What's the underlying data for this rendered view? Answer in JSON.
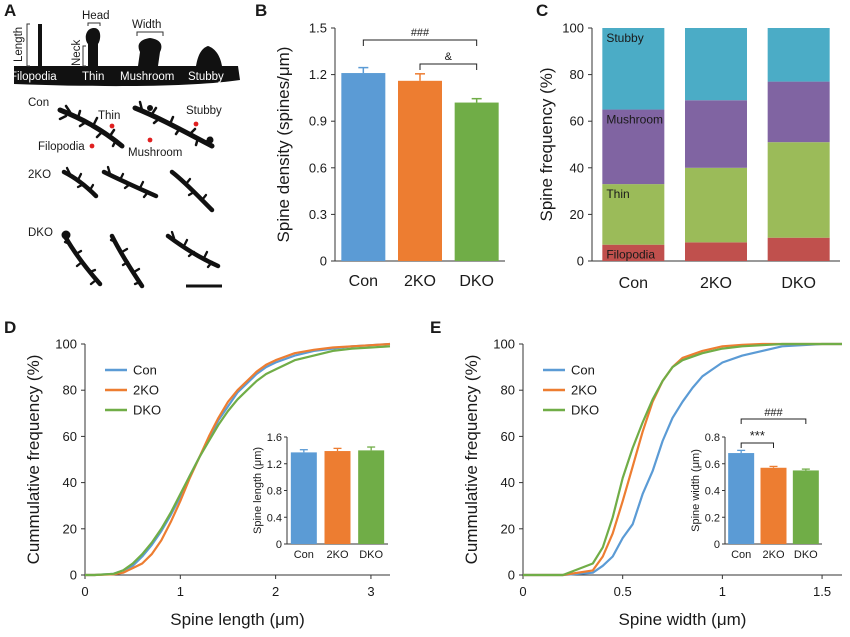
{
  "panels": {
    "a": "A",
    "b": "B",
    "c": "C",
    "d": "D",
    "e": "E"
  },
  "colors": {
    "con": "#5b9bd5",
    "ko2": "#ed7d31",
    "dko": "#70ad47",
    "filopodia": "#c0504d",
    "thin": "#9bbb59",
    "mushroom": "#8064a2",
    "stubby": "#4bacc6"
  },
  "diagram": {
    "length_label": "Length",
    "neck_label": "Neck",
    "head_label": "Head",
    "width_label": "Width",
    "types": [
      "Filopodia",
      "Thin",
      "Mushroom",
      "Stubby"
    ],
    "rows": [
      "Con",
      "2KO",
      "DKO"
    ],
    "callouts": {
      "thin": "Thin",
      "stubby": "Stubby",
      "filopodia": "Filopodia",
      "mushroom": "Mushroom"
    }
  },
  "chart_data": [
    {
      "id": "B",
      "type": "bar",
      "categories": [
        "Con",
        "2KO",
        "DKO"
      ],
      "values": [
        1.21,
        1.16,
        1.02
      ],
      "errors": [
        0.035,
        0.045,
        0.025
      ],
      "ylabel": "Spine density (spines/μm)",
      "ylim": [
        0,
        1.5
      ],
      "yticks": [
        "0",
        "0.3",
        "0.6",
        "0.9",
        "1.2",
        "1.5"
      ],
      "annotations": [
        {
          "from": "Con",
          "to": "DKO",
          "label": "###"
        },
        {
          "from": "2KO",
          "to": "DKO",
          "label": "&"
        }
      ]
    },
    {
      "id": "C",
      "type": "stacked-bar",
      "categories": [
        "Con",
        "2KO",
        "DKO"
      ],
      "series": [
        {
          "name": "Filopodia",
          "values": [
            7,
            8,
            10
          ]
        },
        {
          "name": "Thin",
          "values": [
            26,
            32,
            41
          ]
        },
        {
          "name": "Mushroom",
          "values": [
            32,
            29,
            26
          ]
        },
        {
          "name": "Stubby",
          "values": [
            35,
            31,
            23
          ]
        }
      ],
      "ylabel": "Spine frequency (%)",
      "ylim": [
        0,
        100
      ],
      "yticks": [
        "0",
        "20",
        "40",
        "60",
        "80",
        "100"
      ]
    },
    {
      "id": "D",
      "type": "line",
      "xlabel": "Spine length (μm)",
      "ylabel": "Cummulative frequency (%)",
      "xlim": [
        0,
        3.2
      ],
      "ylim": [
        0,
        100
      ],
      "xticks": [
        "0",
        "1",
        "2",
        "3"
      ],
      "yticks": [
        "0",
        "20",
        "40",
        "60",
        "80",
        "100"
      ],
      "series": [
        {
          "name": "Con",
          "x": [
            0.1,
            0.3,
            0.4,
            0.5,
            0.6,
            0.7,
            0.8,
            0.9,
            1.0,
            1.1,
            1.2,
            1.3,
            1.4,
            1.5,
            1.6,
            1.7,
            1.8,
            1.9,
            2.0,
            2.2,
            2.4,
            2.6,
            2.8,
            3.0,
            3.2
          ],
          "y": [
            0,
            0.5,
            2,
            4,
            8,
            13,
            19,
            26,
            34,
            43,
            51,
            59,
            67,
            73,
            79,
            83,
            87,
            90,
            92,
            95,
            97,
            98,
            99,
            99.5,
            100
          ]
        },
        {
          "name": "2KO",
          "x": [
            0.1,
            0.3,
            0.4,
            0.5,
            0.6,
            0.7,
            0.8,
            0.9,
            1.0,
            1.1,
            1.2,
            1.3,
            1.4,
            1.5,
            1.6,
            1.7,
            1.8,
            1.9,
            2.0,
            2.2,
            2.4,
            2.6,
            2.8,
            3.0,
            3.2
          ],
          "y": [
            0,
            0.3,
            1,
            3,
            5,
            9,
            15,
            23,
            32,
            42,
            51,
            60,
            68,
            75,
            80,
            84,
            88,
            91,
            93,
            96,
            97.5,
            98.5,
            99,
            99.5,
            100
          ]
        },
        {
          "name": "DKO",
          "x": [
            0.1,
            0.3,
            0.4,
            0.5,
            0.6,
            0.7,
            0.8,
            0.9,
            1.0,
            1.1,
            1.2,
            1.3,
            1.4,
            1.5,
            1.6,
            1.7,
            1.8,
            1.9,
            2.0,
            2.2,
            2.4,
            2.6,
            2.8,
            3.0,
            3.2
          ],
          "y": [
            0,
            0.5,
            2,
            5,
            9,
            14,
            20,
            27,
            35,
            43,
            51,
            58,
            65,
            71,
            76,
            80,
            84,
            87,
            89,
            93,
            95,
            97,
            98,
            98.5,
            99
          ]
        }
      ],
      "legend": [
        "Con",
        "2KO",
        "DKO"
      ],
      "inset": {
        "type": "bar",
        "categories": [
          "Con",
          "2KO",
          "DKO"
        ],
        "values": [
          1.37,
          1.39,
          1.4
        ],
        "errors": [
          0.04,
          0.04,
          0.05
        ],
        "ylabel": "Spine length (μm)",
        "ylim": [
          0,
          1.6
        ],
        "yticks": [
          "0",
          "0.4",
          "0.8",
          "1.2",
          "1.6"
        ]
      }
    },
    {
      "id": "E",
      "type": "line",
      "xlabel": "Spine width (μm)",
      "ylabel": "Cummulative frequency (%)",
      "xlim": [
        0,
        1.6
      ],
      "ylim": [
        0,
        100
      ],
      "xticks": [
        "0",
        "0.5",
        "1",
        "1.5"
      ],
      "yticks": [
        "0",
        "20",
        "40",
        "60",
        "80",
        "100"
      ],
      "series": [
        {
          "name": "Con",
          "x": [
            0.2,
            0.35,
            0.4,
            0.45,
            0.5,
            0.55,
            0.6,
            0.65,
            0.7,
            0.75,
            0.8,
            0.85,
            0.9,
            0.95,
            1.0,
            1.1,
            1.2,
            1.3,
            1.4,
            1.5,
            1.6
          ],
          "y": [
            0,
            1,
            4,
            8,
            16,
            22,
            35,
            45,
            58,
            68,
            75,
            81,
            86,
            89,
            92,
            95,
            97,
            99,
            99.5,
            100,
            100
          ]
        },
        {
          "name": "2KO",
          "x": [
            0.2,
            0.35,
            0.4,
            0.45,
            0.5,
            0.55,
            0.6,
            0.65,
            0.7,
            0.75,
            0.8,
            0.9,
            1.0,
            1.1,
            1.2,
            1.3,
            1.4,
            1.5,
            1.6
          ],
          "y": [
            0,
            2,
            8,
            18,
            32,
            47,
            62,
            75,
            84,
            90,
            94,
            97,
            99,
            99.6,
            100,
            100,
            100,
            100,
            100
          ]
        },
        {
          "name": "DKO",
          "x": [
            0.2,
            0.35,
            0.4,
            0.45,
            0.5,
            0.55,
            0.6,
            0.65,
            0.7,
            0.75,
            0.8,
            0.9,
            1.0,
            1.1,
            1.2,
            1.3,
            1.4,
            1.5,
            1.6
          ],
          "y": [
            0,
            5,
            12,
            25,
            42,
            55,
            66,
            76,
            84,
            90,
            93,
            96,
            98,
            99,
            99.5,
            100,
            100,
            100,
            100
          ]
        }
      ],
      "legend": [
        "Con",
        "2KO",
        "DKO"
      ],
      "inset": {
        "type": "bar",
        "categories": [
          "Con",
          "2KO",
          "DKO"
        ],
        "values": [
          0.68,
          0.57,
          0.55
        ],
        "errors": [
          0.02,
          0.01,
          0.01
        ],
        "ylabel": "Spine width (μm)",
        "ylim": [
          0,
          0.8
        ],
        "yticks": [
          "0",
          "0.2",
          "0.4",
          "0.6",
          "0.8"
        ],
        "annotations": [
          {
            "from": "Con",
            "to": "2KO",
            "label": "***"
          },
          {
            "from": "Con",
            "to": "DKO",
            "label": "###"
          }
        ]
      }
    }
  ]
}
